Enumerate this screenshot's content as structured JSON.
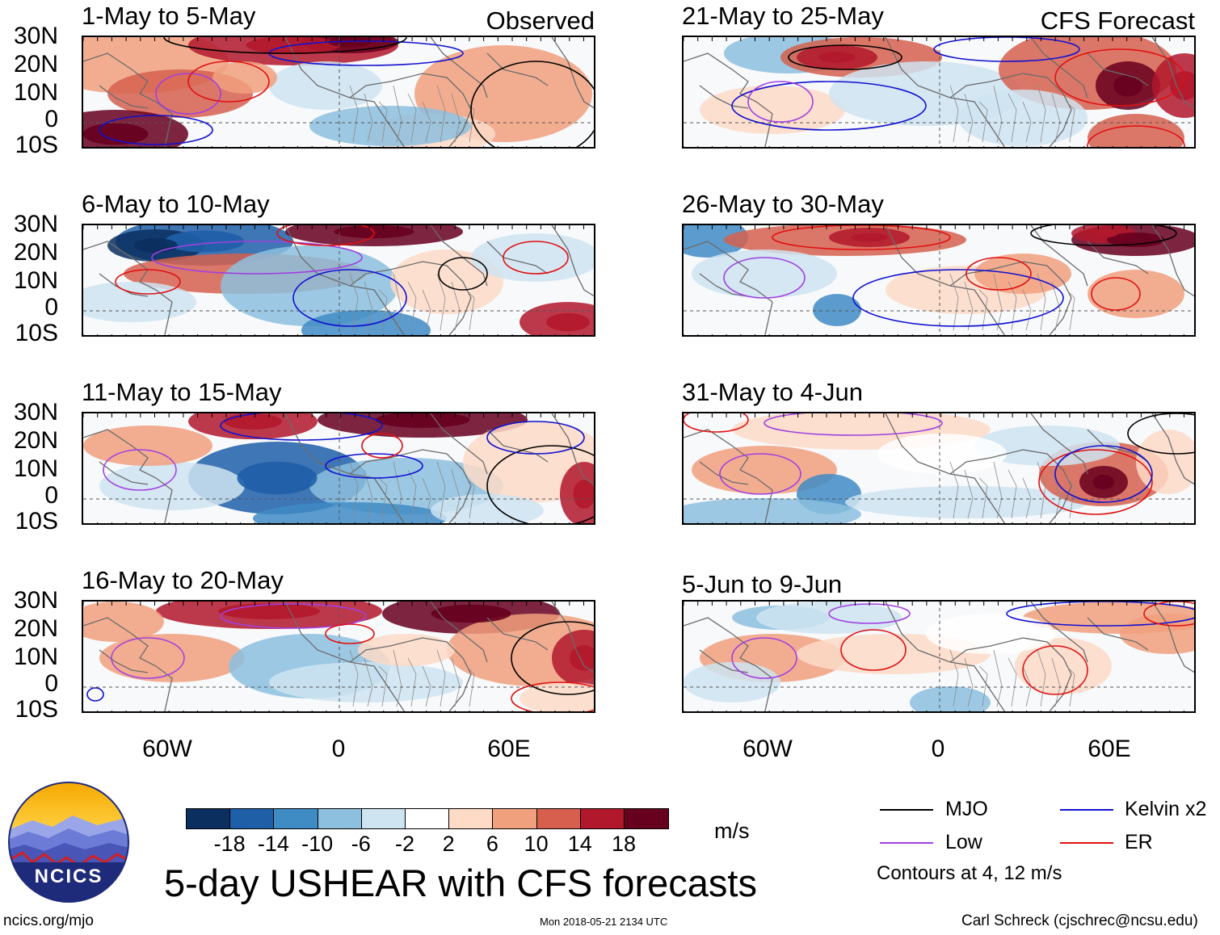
{
  "figure": {
    "title": "5-day USHEAR with CFS forecasts",
    "url": "ncics.org/mjo",
    "timestamp": "Mon 2018-05-21 2134 UTC",
    "author": "Carl Schreck (cjschrec@ncsu.edu)",
    "logo_text": "NCICS",
    "observed_label": "Observed",
    "forecast_label": "CFS Forecast"
  },
  "axes": {
    "lat_labels": [
      "30N",
      "20N",
      "10N",
      "0",
      "10S"
    ],
    "lon_labels": [
      "60W",
      "0",
      "60E"
    ]
  },
  "panels": [
    {
      "period": "1-May to 5-May",
      "type": "observed"
    },
    {
      "period": "6-May to 10-May",
      "type": "observed"
    },
    {
      "period": "11-May to 15-May",
      "type": "observed"
    },
    {
      "period": "16-May to 20-May",
      "type": "observed"
    },
    {
      "period": "21-May to 25-May",
      "type": "forecast"
    },
    {
      "period": "26-May to 30-May",
      "type": "forecast"
    },
    {
      "period": "31-May to 4-Jun",
      "type": "forecast"
    },
    {
      "period": "5-Jun to 9-Jun",
      "type": "forecast"
    }
  ],
  "colorbar": {
    "unit": "m/s",
    "tick_labels": [
      "-18",
      "-14",
      "-10",
      "-6",
      "-2",
      "2",
      "6",
      "10",
      "14",
      "18"
    ],
    "colors": [
      "#0b2f5e",
      "#1f5fa8",
      "#3f8bc4",
      "#8cc0de",
      "#cfe4f1",
      "#ffffff",
      "#fddbc7",
      "#f1a07e",
      "#d6604d",
      "#b2182b",
      "#67001f"
    ]
  },
  "legend": {
    "items": [
      {
        "label": "MJO",
        "color": "#000000"
      },
      {
        "label": "Kelvin x2",
        "color": "#1010d0"
      },
      {
        "label": "Low",
        "color": "#a040e0"
      },
      {
        "label": "ER",
        "color": "#e01010"
      }
    ],
    "contour_note": "Contours at 4, 12 m/s"
  }
}
